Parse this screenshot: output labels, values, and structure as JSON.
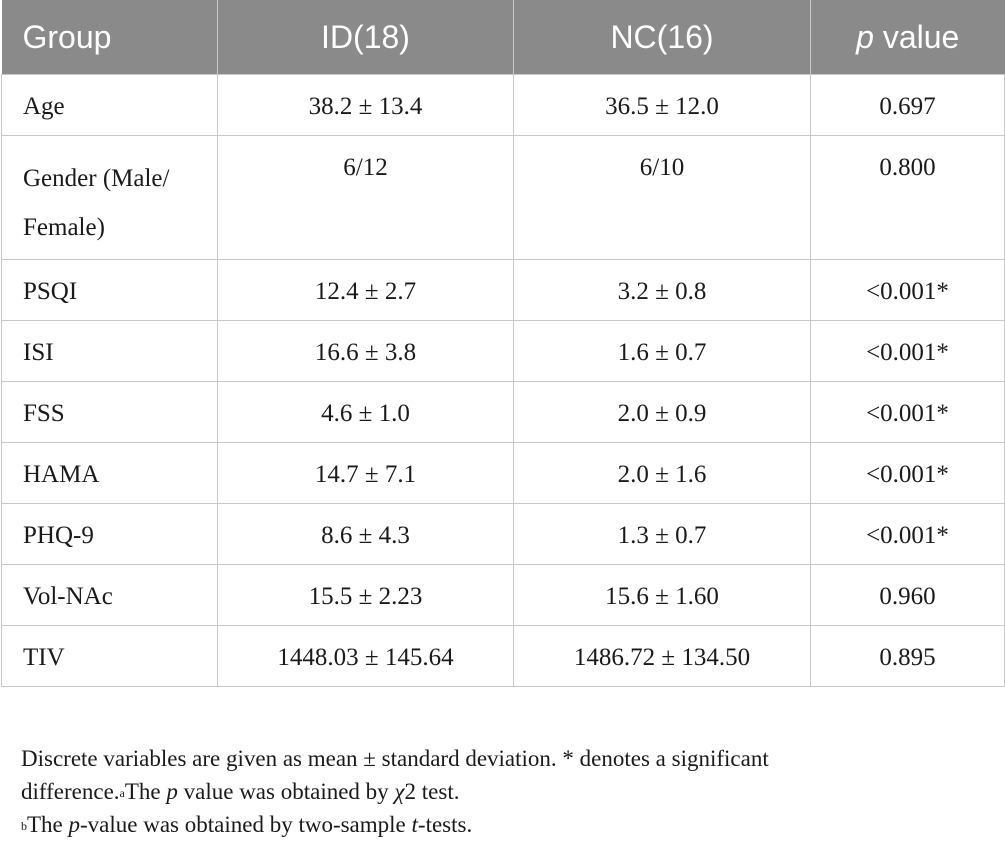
{
  "table": {
    "headers": {
      "group": "Group",
      "id": "ID(18)",
      "nc": "NC(16)",
      "p_italic": "p",
      "p_rest": " value"
    },
    "rows": [
      {
        "label": "Age",
        "id": "38.2 ± 13.4",
        "nc": "36.5 ± 12.0",
        "p": "0.697"
      },
      {
        "label": "Gender (Male/",
        "label2": "Female)",
        "id": "6/12",
        "nc": "6/10",
        "p": "0.800"
      },
      {
        "label": "PSQI",
        "id": "12.4 ± 2.7",
        "nc": "3.2 ± 0.8",
        "p": "<0.001*"
      },
      {
        "label": "ISI",
        "id": "16.6 ± 3.8",
        "nc": "1.6 ± 0.7",
        "p": "<0.001*"
      },
      {
        "label": "FSS",
        "id": "4.6 ± 1.0",
        "nc": "2.0 ± 0.9",
        "p": "<0.001*"
      },
      {
        "label": "HAMA",
        "id": "14.7 ± 7.1",
        "nc": "2.0 ± 1.6",
        "p": "<0.001*"
      },
      {
        "label": "PHQ-9",
        "id": "8.6 ± 4.3",
        "nc": "1.3 ± 0.7",
        "p": "<0.001*"
      },
      {
        "label": "Vol-NAc",
        "id": "15.5 ± 2.23",
        "nc": "15.6 ± 1.60",
        "p": "0.960"
      },
      {
        "label": "TIV",
        "id": "1448.03 ± 145.64",
        "nc": "1486.72 ± 134.50",
        "p": "0.895"
      }
    ]
  },
  "notes": {
    "line1": "Discrete variables are given as mean ± standard deviation. * denotes a significant",
    "line2a": "difference.",
    "line2_sup": "a",
    "line2b": "The ",
    "line2_p": "p",
    "line2c": " value was obtained by ",
    "line2_chi": "χ",
    "line2d": "2 test.",
    "line3_sup": "b",
    "line3a": "The ",
    "line3_p": "p",
    "line3b": "-value was obtained by two-sample ",
    "line3_t": "t",
    "line3c": "-tests."
  }
}
